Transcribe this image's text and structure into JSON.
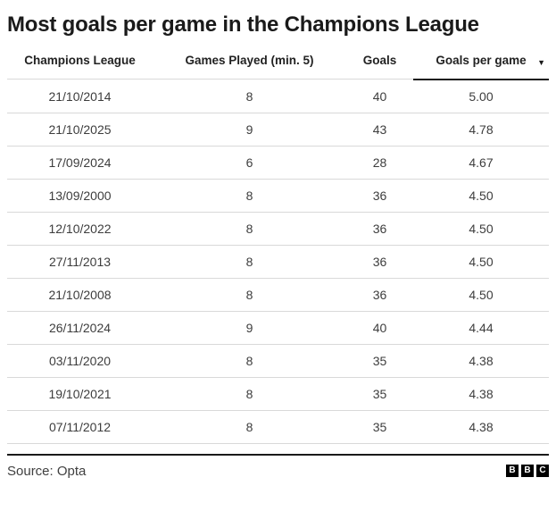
{
  "title": "Most goals per game in the Champions League",
  "table": {
    "columns": [
      {
        "label": "Champions League",
        "sorted": false
      },
      {
        "label": "Games Played (min. 5)",
        "sorted": false
      },
      {
        "label": "Goals",
        "sorted": false
      },
      {
        "label": "Goals per game",
        "sorted": true,
        "sort_icon": "▼"
      }
    ],
    "rows": [
      [
        "21/10/2014",
        "8",
        "40",
        "5.00"
      ],
      [
        "21/10/2025",
        "9",
        "43",
        "4.78"
      ],
      [
        "17/09/2024",
        "6",
        "28",
        "4.67"
      ],
      [
        "13/09/2000",
        "8",
        "36",
        "4.50"
      ],
      [
        "12/10/2022",
        "8",
        "36",
        "4.50"
      ],
      [
        "27/11/2013",
        "8",
        "36",
        "4.50"
      ],
      [
        "21/10/2008",
        "8",
        "36",
        "4.50"
      ],
      [
        "26/11/2024",
        "9",
        "40",
        "4.44"
      ],
      [
        "03/11/2020",
        "8",
        "35",
        "4.38"
      ],
      [
        "19/10/2021",
        "8",
        "35",
        "4.38"
      ],
      [
        "07/11/2012",
        "8",
        "35",
        "4.38"
      ]
    ]
  },
  "footer": {
    "source": "Source: Opta",
    "logo_letters": [
      "B",
      "B",
      "C"
    ]
  },
  "colors": {
    "title_text": "#1a1a1a",
    "header_text": "#222222",
    "cell_text": "#3d3d3d",
    "row_divider": "#d9d9d9",
    "sorted_underline": "#1a1a1a",
    "footer_rule": "#1a1a1a",
    "logo_background": "#000000",
    "logo_letter": "#ffffff"
  },
  "chart_data": {
    "type": "table",
    "title": "Most goals per game in the Champions League",
    "columns": [
      "Champions League",
      "Games Played (min. 5)",
      "Goals",
      "Goals per game"
    ],
    "sorted_by": "Goals per game",
    "sort_direction": "descending",
    "rows": [
      {
        "date": "21/10/2014",
        "games_played": 8,
        "goals": 40,
        "goals_per_game": 5.0
      },
      {
        "date": "21/10/2025",
        "games_played": 9,
        "goals": 43,
        "goals_per_game": 4.78
      },
      {
        "date": "17/09/2024",
        "games_played": 6,
        "goals": 28,
        "goals_per_game": 4.67
      },
      {
        "date": "13/09/2000",
        "games_played": 8,
        "goals": 36,
        "goals_per_game": 4.5
      },
      {
        "date": "12/10/2022",
        "games_played": 8,
        "goals": 36,
        "goals_per_game": 4.5
      },
      {
        "date": "27/11/2013",
        "games_played": 8,
        "goals": 36,
        "goals_per_game": 4.5
      },
      {
        "date": "21/10/2008",
        "games_played": 8,
        "goals": 36,
        "goals_per_game": 4.5
      },
      {
        "date": "26/11/2024",
        "games_played": 9,
        "goals": 40,
        "goals_per_game": 4.44
      },
      {
        "date": "03/11/2020",
        "games_played": 8,
        "goals": 35,
        "goals_per_game": 4.38
      },
      {
        "date": "19/10/2021",
        "games_played": 8,
        "goals": 35,
        "goals_per_game": 4.38
      },
      {
        "date": "07/11/2012",
        "games_played": 8,
        "goals": 35,
        "goals_per_game": 4.38
      }
    ],
    "source": "Source: Opta"
  }
}
